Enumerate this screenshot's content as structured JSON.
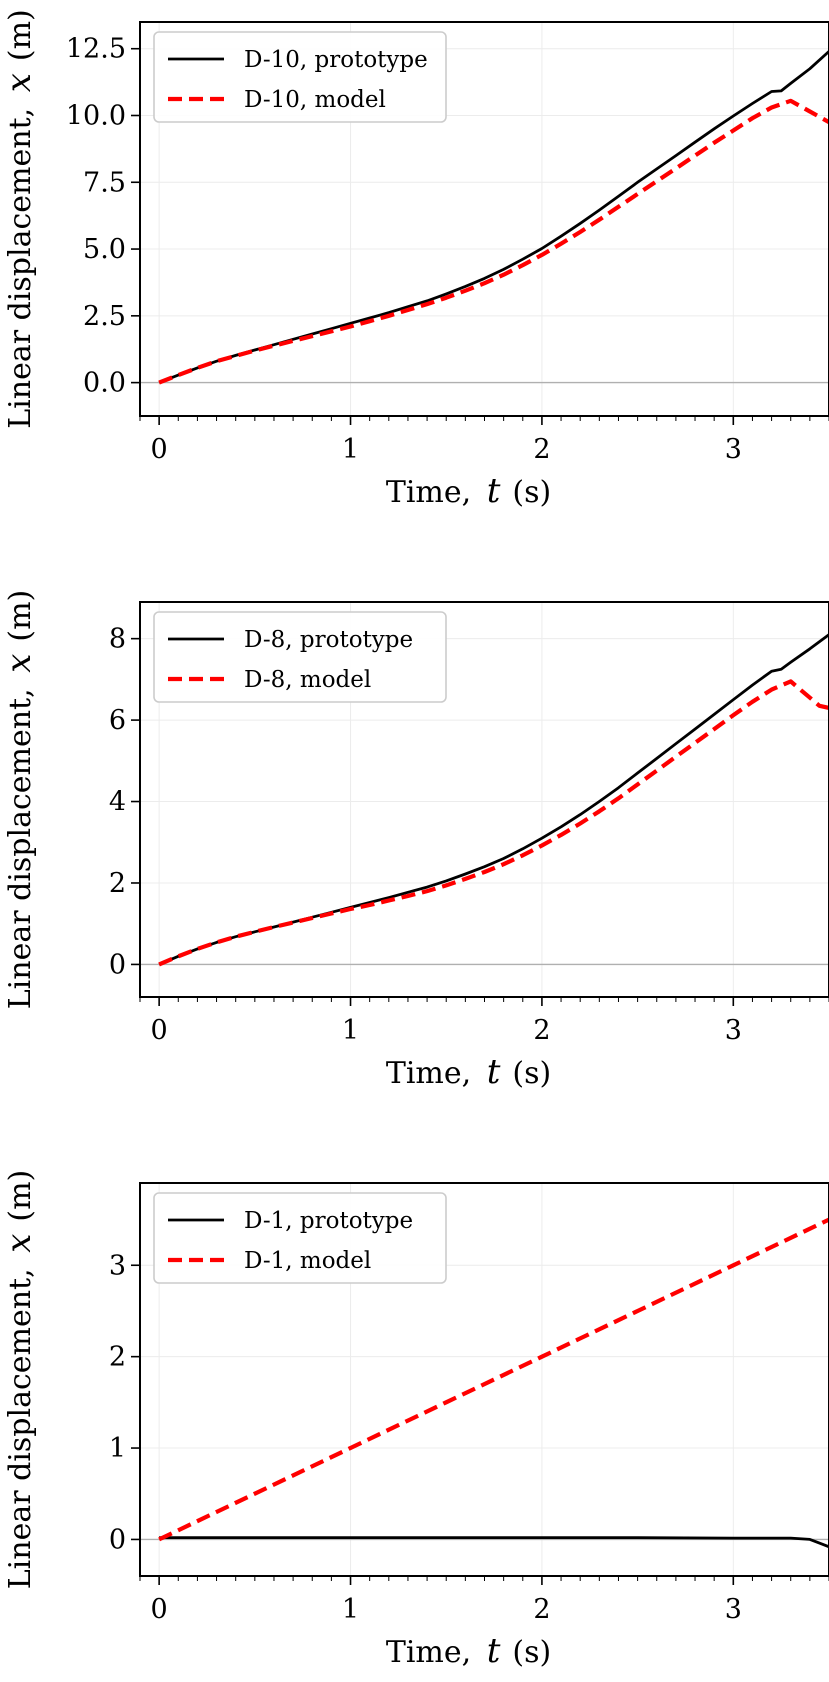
{
  "chart_data": [
    {
      "type": "line",
      "xlabel": {
        "prefix": "Time,",
        "symbol": "t",
        "unit": "(s)"
      },
      "ylabel": {
        "prefix": "Linear displacement,",
        "symbol": "x",
        "unit": "(m)"
      },
      "xlim": [
        -0.1,
        3.5
      ],
      "ylim": [
        -1.25,
        13.5
      ],
      "xticks": [
        0,
        1,
        2,
        3
      ],
      "xtick_labels": [
        "0",
        "1",
        "2",
        "3"
      ],
      "yticks": [
        0,
        2.5,
        5,
        7.5,
        10,
        12.5
      ],
      "ytick_labels": [
        "0.0",
        "2.5",
        "5.0",
        "7.5",
        "10.0",
        "12.5"
      ],
      "grid": true,
      "zero_line": true,
      "legend_position": "top-left",
      "series": [
        {
          "name": "D-10, prototype",
          "color": "#000000",
          "style": "solid",
          "x": [
            0,
            0.1,
            0.2,
            0.3,
            0.4,
            0.5,
            0.6,
            0.7,
            0.8,
            0.9,
            1.0,
            1.1,
            1.2,
            1.3,
            1.4,
            1.5,
            1.6,
            1.7,
            1.8,
            1.9,
            2.0,
            2.1,
            2.2,
            2.3,
            2.4,
            2.5,
            2.6,
            2.7,
            2.8,
            2.9,
            3.0,
            3.1,
            3.2,
            3.25,
            3.3,
            3.4,
            3.5
          ],
          "y": [
            0,
            0.28,
            0.55,
            0.8,
            1.02,
            1.22,
            1.42,
            1.62,
            1.82,
            2.02,
            2.22,
            2.42,
            2.62,
            2.84,
            3.06,
            3.32,
            3.6,
            3.9,
            4.24,
            4.62,
            5.02,
            5.48,
            5.96,
            6.46,
            6.98,
            7.5,
            8.0,
            8.5,
            9.0,
            9.5,
            9.98,
            10.45,
            10.9,
            10.92,
            11.2,
            11.75,
            12.4
          ]
        },
        {
          "name": "D-10, model",
          "color": "#ff0000",
          "style": "dashed",
          "x": [
            0,
            0.1,
            0.2,
            0.3,
            0.4,
            0.5,
            0.6,
            0.7,
            0.8,
            0.9,
            1.0,
            1.1,
            1.2,
            1.3,
            1.4,
            1.5,
            1.6,
            1.7,
            1.8,
            1.9,
            2.0,
            2.1,
            2.2,
            2.3,
            2.4,
            2.5,
            2.6,
            2.7,
            2.8,
            2.9,
            3.0,
            3.1,
            3.2,
            3.3,
            3.4,
            3.5
          ],
          "y": [
            0,
            0.28,
            0.55,
            0.8,
            1.0,
            1.2,
            1.38,
            1.56,
            1.74,
            1.92,
            2.1,
            2.3,
            2.5,
            2.72,
            2.94,
            3.18,
            3.44,
            3.72,
            4.04,
            4.4,
            4.78,
            5.2,
            5.64,
            6.1,
            6.58,
            7.06,
            7.54,
            8.02,
            8.5,
            8.98,
            9.44,
            9.9,
            10.3,
            10.55,
            10.15,
            9.75
          ]
        }
      ]
    },
    {
      "type": "line",
      "xlabel": {
        "prefix": "Time,",
        "symbol": "t",
        "unit": "(s)"
      },
      "ylabel": {
        "prefix": "Linear displacement,",
        "symbol": "x",
        "unit": "(m)"
      },
      "xlim": [
        -0.1,
        3.5
      ],
      "ylim": [
        -0.8,
        8.9
      ],
      "xticks": [
        0,
        1,
        2,
        3
      ],
      "xtick_labels": [
        "0",
        "1",
        "2",
        "3"
      ],
      "yticks": [
        0,
        2,
        4,
        6,
        8
      ],
      "ytick_labels": [
        "0",
        "2",
        "4",
        "6",
        "8"
      ],
      "grid": true,
      "zero_line": true,
      "legend_position": "top-left",
      "series": [
        {
          "name": "D-8, prototype",
          "color": "#000000",
          "style": "solid",
          "x": [
            0,
            0.1,
            0.2,
            0.3,
            0.4,
            0.5,
            0.6,
            0.7,
            0.8,
            0.9,
            1.0,
            1.1,
            1.2,
            1.3,
            1.4,
            1.5,
            1.6,
            1.7,
            1.8,
            1.9,
            2.0,
            2.1,
            2.2,
            2.3,
            2.4,
            2.5,
            2.6,
            2.7,
            2.8,
            2.9,
            3.0,
            3.1,
            3.2,
            3.25,
            3.3,
            3.4,
            3.5
          ],
          "y": [
            0,
            0.2,
            0.38,
            0.54,
            0.68,
            0.8,
            0.92,
            1.04,
            1.16,
            1.28,
            1.4,
            1.52,
            1.64,
            1.77,
            1.9,
            2.05,
            2.22,
            2.4,
            2.6,
            2.84,
            3.1,
            3.38,
            3.68,
            4.0,
            4.34,
            4.7,
            5.06,
            5.42,
            5.78,
            6.14,
            6.5,
            6.86,
            7.2,
            7.25,
            7.42,
            7.75,
            8.1
          ]
        },
        {
          "name": "D-8, model",
          "color": "#ff0000",
          "style": "dashed",
          "x": [
            0,
            0.1,
            0.2,
            0.3,
            0.4,
            0.5,
            0.6,
            0.7,
            0.8,
            0.9,
            1.0,
            1.1,
            1.2,
            1.3,
            1.4,
            1.5,
            1.6,
            1.7,
            1.8,
            1.9,
            2.0,
            2.1,
            2.2,
            2.3,
            2.4,
            2.5,
            2.6,
            2.7,
            2.8,
            2.9,
            3.0,
            3.1,
            3.2,
            3.3,
            3.35,
            3.4,
            3.45,
            3.5
          ],
          "y": [
            0,
            0.2,
            0.38,
            0.54,
            0.68,
            0.8,
            0.92,
            1.03,
            1.14,
            1.25,
            1.36,
            1.46,
            1.57,
            1.68,
            1.8,
            1.94,
            2.1,
            2.27,
            2.46,
            2.68,
            2.92,
            3.18,
            3.46,
            3.76,
            4.08,
            4.42,
            4.76,
            5.1,
            5.44,
            5.78,
            6.12,
            6.45,
            6.75,
            6.95,
            6.75,
            6.55,
            6.35,
            6.3
          ]
        }
      ]
    },
    {
      "type": "line",
      "xlabel": {
        "prefix": "Time,",
        "symbol": "t",
        "unit": "(s)"
      },
      "ylabel": {
        "prefix": "Linear displacement,",
        "symbol": "x",
        "unit": "(m)"
      },
      "xlim": [
        -0.1,
        3.5
      ],
      "ylim": [
        -0.4,
        3.9
      ],
      "xticks": [
        0,
        1,
        2,
        3
      ],
      "xtick_labels": [
        "0",
        "1",
        "2",
        "3"
      ],
      "yticks": [
        0,
        1,
        2,
        3
      ],
      "ytick_labels": [
        "0",
        "1",
        "2",
        "3"
      ],
      "grid": true,
      "zero_line": true,
      "legend_position": "top-left",
      "series": [
        {
          "name": "D-1, prototype",
          "color": "#000000",
          "style": "solid",
          "x": [
            0,
            0.5,
            1.0,
            1.5,
            2.0,
            2.5,
            3.0,
            3.3,
            3.4,
            3.45,
            3.5
          ],
          "y": [
            0.02,
            0.02,
            0.02,
            0.02,
            0.02,
            0.02,
            0.015,
            0.015,
            0.0,
            -0.04,
            -0.08
          ]
        },
        {
          "name": "D-1, model",
          "color": "#ff0000",
          "style": "dashed",
          "x": [
            0,
            0.5,
            1.0,
            1.5,
            2.0,
            2.5,
            3.0,
            3.5
          ],
          "y": [
            0,
            0.5,
            1.0,
            1.5,
            2.0,
            2.5,
            3.0,
            3.5
          ]
        }
      ]
    }
  ]
}
